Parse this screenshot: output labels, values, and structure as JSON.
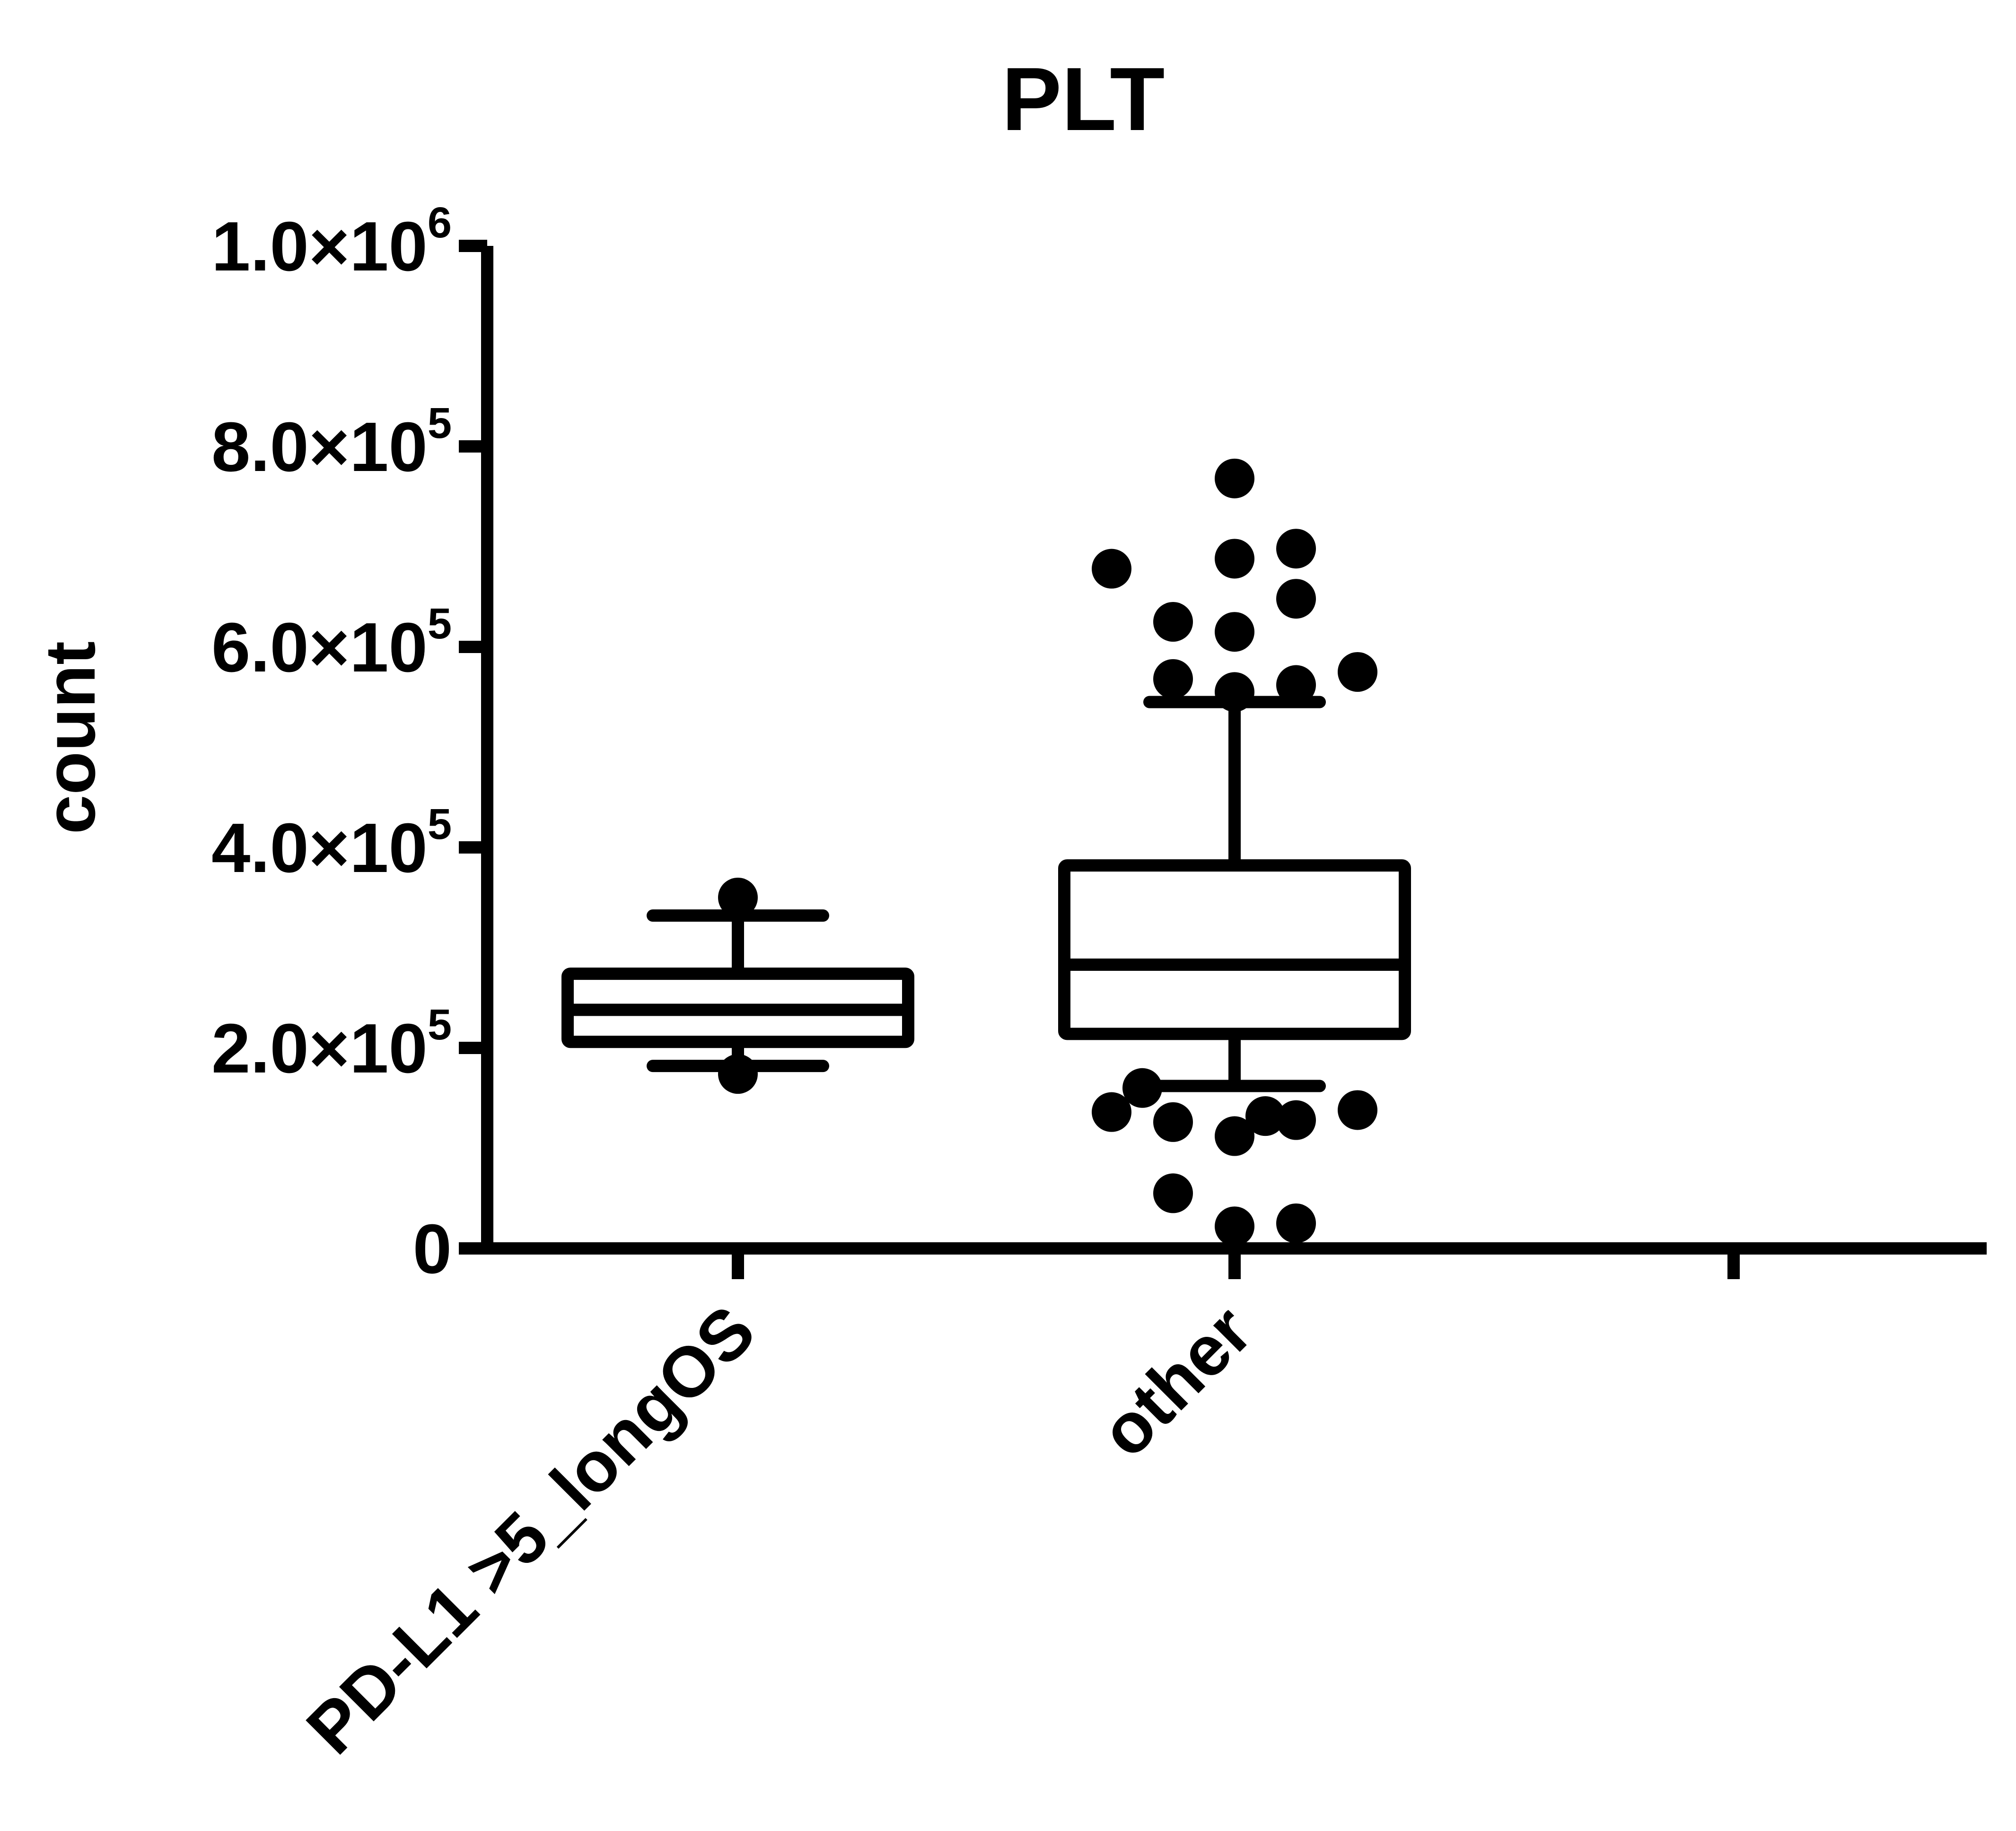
{
  "chart_data": {
    "type": "box",
    "title": "PLT",
    "ylabel": "count",
    "xlabel": "",
    "ylim": [
      0,
      1000000
    ],
    "y_ticks": [
      {
        "value": 0,
        "mantissa": "0",
        "exponent": ""
      },
      {
        "value": 200000,
        "mantissa": "2.0×10",
        "exponent": "5"
      },
      {
        "value": 400000,
        "mantissa": "4.0×10",
        "exponent": "5"
      },
      {
        "value": 600000,
        "mantissa": "6.0×10",
        "exponent": "5"
      },
      {
        "value": 800000,
        "mantissa": "8.0×10",
        "exponent": "5"
      },
      {
        "value": 1000000,
        "mantissa": "1.0×10",
        "exponent": "6"
      }
    ],
    "categories": [
      "PD-L1 >5_longOS",
      "other",
      ""
    ],
    "boxes": [
      {
        "category": "PD-L1 >5_longOS",
        "whisker_low": 182000,
        "q1": 206000,
        "median": 238000,
        "q3": 274000,
        "whisker_high": 332000,
        "outliers": [
          350000,
          174000
        ]
      },
      {
        "category": "other",
        "whisker_low": 162000,
        "q1": 214000,
        "median": 283000,
        "q3": 382000,
        "whisker_high": 545000,
        "outliers": [
          {
            "y": 768000,
            "offset": 0
          },
          {
            "y": 688000,
            "offset": 0
          },
          {
            "y": 698000,
            "offset": 1
          },
          {
            "y": 678000,
            "offset": -2
          },
          {
            "y": 648000,
            "offset": 1
          },
          {
            "y": 625000,
            "offset": -1
          },
          {
            "y": 615000,
            "offset": 0
          },
          {
            "y": 575000,
            "offset": 2
          },
          {
            "y": 568000,
            "offset": -1
          },
          {
            "y": 562000,
            "offset": 1
          },
          {
            "y": 555000,
            "offset": 0
          },
          {
            "y": 160000,
            "offset": -1.5
          },
          {
            "y": 138000,
            "offset": 2
          },
          {
            "y": 136000,
            "offset": -2
          },
          {
            "y": 132000,
            "offset": 0.5
          },
          {
            "y": 128000,
            "offset": 1
          },
          {
            "y": 126000,
            "offset": -1
          },
          {
            "y": 112000,
            "offset": 0
          },
          {
            "y": 55000,
            "offset": -1
          },
          {
            "y": 25000,
            "offset": 1
          },
          {
            "y": 22000,
            "offset": 0
          }
        ]
      }
    ],
    "grid": false,
    "legend": "none",
    "colors": {
      "ink": "#000000",
      "background": "#ffffff"
    }
  }
}
